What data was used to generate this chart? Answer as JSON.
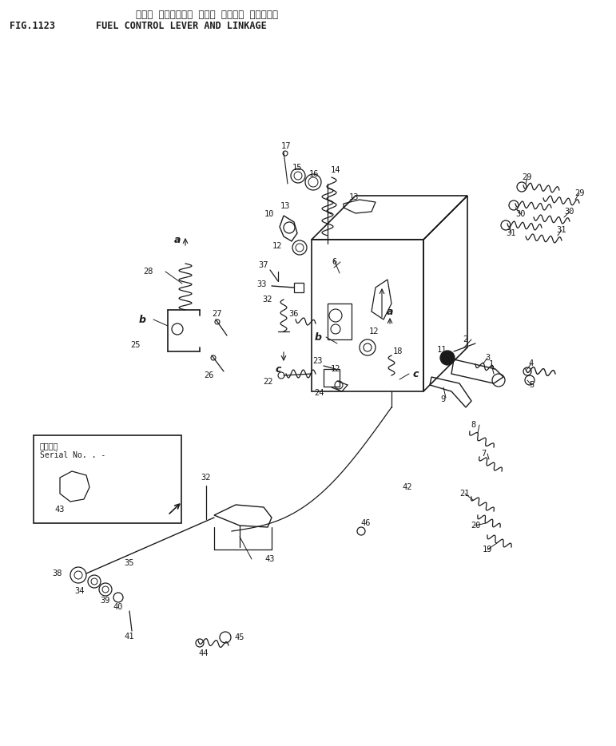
{
  "fig_number": "FIG.1123",
  "title_jp": "フェル コントロール レバー オヨビー リンケージ",
  "title_en": "FUEL CONTROL LEVER AND LINKAGE",
  "bg_color": "#ffffff",
  "line_color": "#1a1a1a",
  "figsize": [
    7.71,
    9.34
  ],
  "dpi": 100
}
